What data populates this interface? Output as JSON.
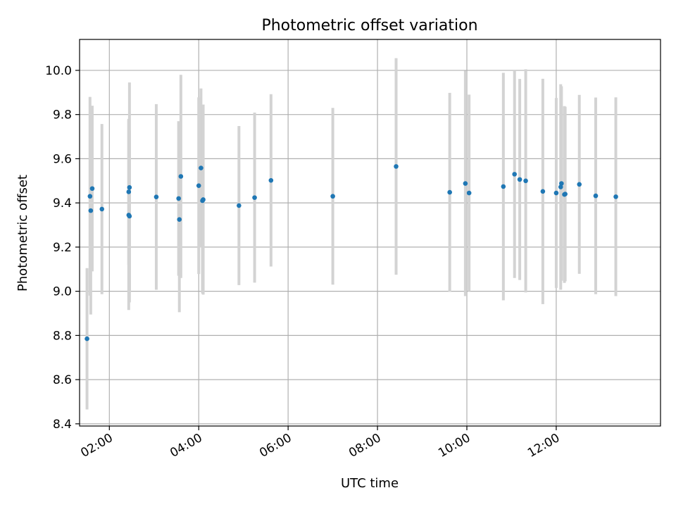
{
  "chart_data": {
    "type": "scatter",
    "title": "Photometric offset variation",
    "xlabel": "UTC time",
    "ylabel": "Photometric offset",
    "x_ticks": [
      "02:00",
      "04:00",
      "06:00",
      "08:00",
      "10:00",
      "12:00"
    ],
    "y_ticks": [
      "8.4",
      "8.6",
      "8.8",
      "9.0",
      "9.2",
      "9.4",
      "9.6",
      "9.8",
      "10.0"
    ],
    "xlim": [
      "01:20",
      "14:20"
    ],
    "ylim": [
      8.39,
      10.14
    ],
    "grid": true,
    "colors": {
      "point": "#1f77b4",
      "errorbar": "#d3d3d3",
      "grid": "#b0b0b0"
    },
    "points": [
      {
        "x": "01:30",
        "y": 8.785,
        "yerr": 0.32
      },
      {
        "x": "01:34",
        "y": 9.43,
        "yerr": 0.45
      },
      {
        "x": "01:35",
        "y": 9.365,
        "yerr": 0.47
      },
      {
        "x": "01:37",
        "y": 9.465,
        "yerr": 0.375
      },
      {
        "x": "01:50",
        "y": 9.372,
        "yerr": 0.385
      },
      {
        "x": "02:26",
        "y": 9.345,
        "yerr": 0.43
      },
      {
        "x": "02:26",
        "y": 9.45,
        "yerr": 0.33
      },
      {
        "x": "02:27",
        "y": 9.34,
        "yerr": 0.39
      },
      {
        "x": "02:27",
        "y": 9.47,
        "yerr": 0.475
      },
      {
        "x": "03:03",
        "y": 9.427,
        "yerr": 0.42
      },
      {
        "x": "03:33",
        "y": 9.42,
        "yerr": 0.35
      },
      {
        "x": "03:34",
        "y": 9.325,
        "yerr": 0.42
      },
      {
        "x": "03:36",
        "y": 9.52,
        "yerr": 0.46
      },
      {
        "x": "04:00",
        "y": 9.478,
        "yerr": 0.4
      },
      {
        "x": "04:03",
        "y": 9.558,
        "yerr": 0.36
      },
      {
        "x": "04:05",
        "y": 9.41,
        "yerr": 0.42
      },
      {
        "x": "04:06",
        "y": 9.415,
        "yerr": 0.43
      },
      {
        "x": "04:54",
        "y": 9.388,
        "yerr": 0.36
      },
      {
        "x": "05:15",
        "y": 9.424,
        "yerr": 0.385
      },
      {
        "x": "05:37",
        "y": 9.502,
        "yerr": 0.39
      },
      {
        "x": "07:00",
        "y": 9.43,
        "yerr": 0.4
      },
      {
        "x": "08:25",
        "y": 9.565,
        "yerr": 0.49
      },
      {
        "x": "09:37",
        "y": 9.448,
        "yerr": 0.45
      },
      {
        "x": "09:58",
        "y": 9.488,
        "yerr": 0.51
      },
      {
        "x": "10:03",
        "y": 9.445,
        "yerr": 0.445
      },
      {
        "x": "10:49",
        "y": 9.474,
        "yerr": 0.515
      },
      {
        "x": "11:04",
        "y": 9.53,
        "yerr": 0.47
      },
      {
        "x": "11:11",
        "y": 9.506,
        "yerr": 0.455
      },
      {
        "x": "11:19",
        "y": 9.5,
        "yerr": 0.505
      },
      {
        "x": "11:42",
        "y": 9.452,
        "yerr": 0.51
      },
      {
        "x": "12:00",
        "y": 9.445,
        "yerr": 0.43
      },
      {
        "x": "12:06",
        "y": 9.472,
        "yerr": 0.465
      },
      {
        "x": "12:07",
        "y": 9.488,
        "yerr": 0.44
      },
      {
        "x": "12:11",
        "y": 9.438,
        "yerr": 0.4
      },
      {
        "x": "12:12",
        "y": 9.44,
        "yerr": 0.395
      },
      {
        "x": "12:31",
        "y": 9.484,
        "yerr": 0.405
      },
      {
        "x": "12:53",
        "y": 9.432,
        "yerr": 0.445
      },
      {
        "x": "13:20",
        "y": 9.428,
        "yerr": 0.45
      }
    ]
  }
}
